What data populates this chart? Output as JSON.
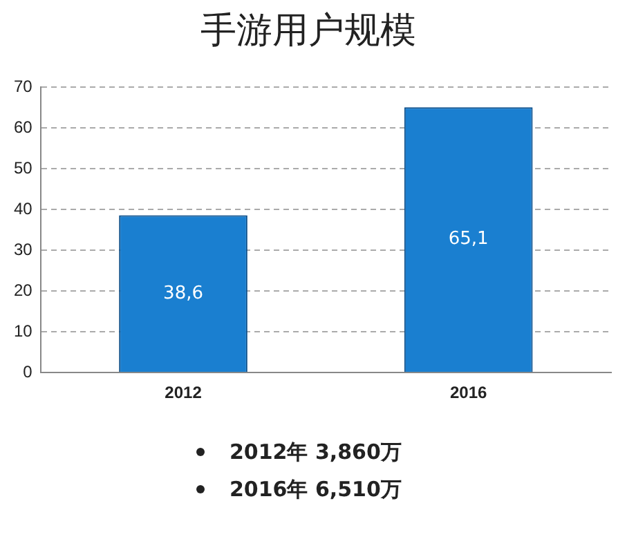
{
  "chart_data": {
    "type": "bar",
    "title": "手游用户规模",
    "categories": [
      "2012",
      "2016"
    ],
    "values": [
      38.6,
      65.1
    ],
    "color": "#1a7fd0",
    "value_labels": [
      "38,6",
      "65,1"
    ],
    "ylim": [
      0,
      70
    ],
    "yticks": [
      0,
      10,
      20,
      30,
      40,
      50,
      60,
      70
    ],
    "grid": "y",
    "line_style": "dashed",
    "legend": false,
    "annotations": [
      "2012年 3,860万",
      "2016年 6,510万"
    ]
  }
}
